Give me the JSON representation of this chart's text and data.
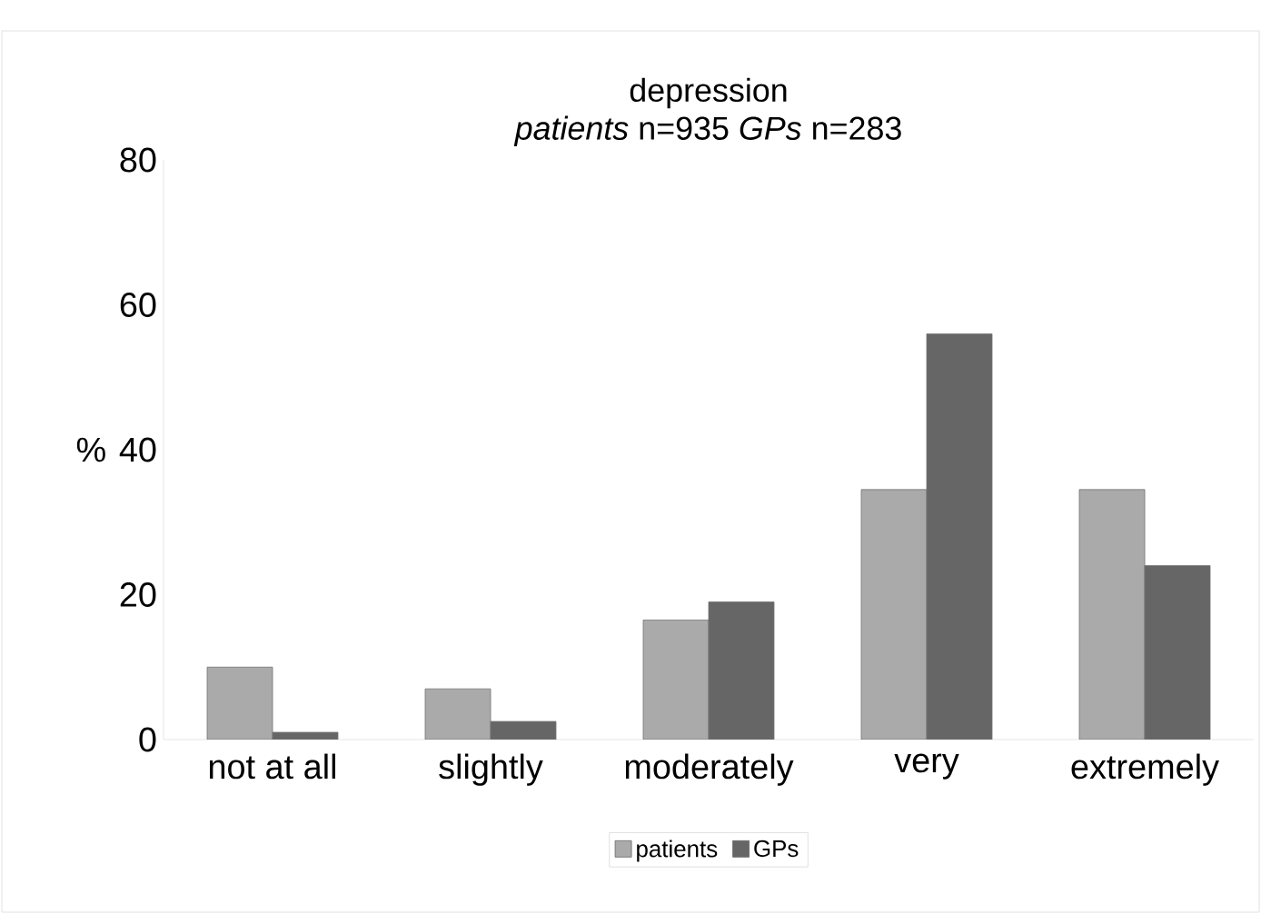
{
  "chart_data": {
    "type": "bar",
    "title": "depression",
    "subtitle": "*patients* n=935 *GPs* n=283",
    "ylabel": "%",
    "categories": [
      "not at all",
      "slightly",
      "moderately",
      "very",
      "extremely"
    ],
    "series": [
      {
        "name": "patients",
        "color": "#aaaaaa",
        "values": [
          10,
          7,
          16.5,
          34.5,
          34.5
        ]
      },
      {
        "name": "GPs",
        "color": "#666666",
        "values": [
          1,
          2.5,
          19,
          56,
          24
        ]
      }
    ],
    "ylim": [
      0,
      80
    ],
    "yticks": [
      0,
      20,
      40,
      60,
      80
    ],
    "legend": "bottom"
  }
}
